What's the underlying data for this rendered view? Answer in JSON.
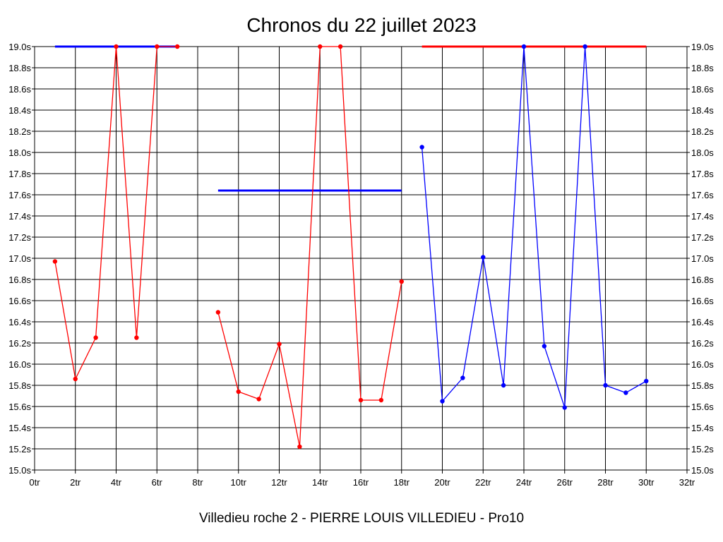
{
  "chart_data": {
    "type": "line",
    "title": "Chronos du 22 juillet 2023",
    "subtitle": "Villedieu roche 2 - PIERRE LOUIS VILLEDIEU - Pro10",
    "grid": true,
    "xlim": [
      0,
      32
    ],
    "ylim": [
      15.0,
      19.0
    ],
    "x_ticks": [
      "0tr",
      "2tr",
      "4tr",
      "6tr",
      "8tr",
      "10tr",
      "12tr",
      "14tr",
      "16tr",
      "18tr",
      "20tr",
      "22tr",
      "24tr",
      "26tr",
      "28tr",
      "30tr",
      "32tr"
    ],
    "y_ticks": [
      "19.0s",
      "18.8s",
      "18.6s",
      "18.4s",
      "18.2s",
      "18.0s",
      "17.8s",
      "17.6s",
      "17.4s",
      "17.2s",
      "17.0s",
      "16.8s",
      "16.6s",
      "16.4s",
      "16.2s",
      "16.0s",
      "15.8s",
      "15.6s",
      "15.4s",
      "15.2s",
      "15.0s"
    ],
    "series": [
      {
        "color": "#ff0000",
        "points": [
          [
            1,
            16.97
          ],
          [
            2,
            15.86
          ],
          [
            3,
            16.25
          ],
          [
            4,
            19.0
          ],
          [
            5,
            16.25
          ],
          [
            6,
            19.0
          ],
          [
            7,
            19.0
          ]
        ]
      },
      {
        "color": "#ff0000",
        "points": [
          [
            9,
            16.49
          ],
          [
            10,
            15.74
          ],
          [
            11,
            15.67
          ],
          [
            12,
            16.19
          ],
          [
            13,
            15.22
          ],
          [
            14,
            19.0
          ],
          [
            15,
            19.0
          ],
          [
            16,
            15.66
          ],
          [
            17,
            15.66
          ],
          [
            18,
            16.78
          ]
        ]
      },
      {
        "color": "#0000ff",
        "points": [
          [
            19,
            18.05
          ],
          [
            20,
            15.65
          ],
          [
            21,
            15.87
          ],
          [
            22,
            17.01
          ],
          [
            23,
            15.8
          ],
          [
            24,
            19.0
          ],
          [
            25,
            16.17
          ],
          [
            26,
            15.59
          ],
          [
            27,
            19.0
          ],
          [
            28,
            15.8
          ],
          [
            29,
            15.73
          ],
          [
            30,
            15.84
          ]
        ]
      }
    ],
    "reference_lines": [
      {
        "color": "#0000ff",
        "x": [
          1,
          7
        ],
        "y": 19.0
      },
      {
        "color": "#0000ff",
        "x": [
          9,
          18
        ],
        "y": 17.64
      },
      {
        "color": "#ff0000",
        "x": [
          19,
          30
        ],
        "y": 19.0
      }
    ]
  }
}
